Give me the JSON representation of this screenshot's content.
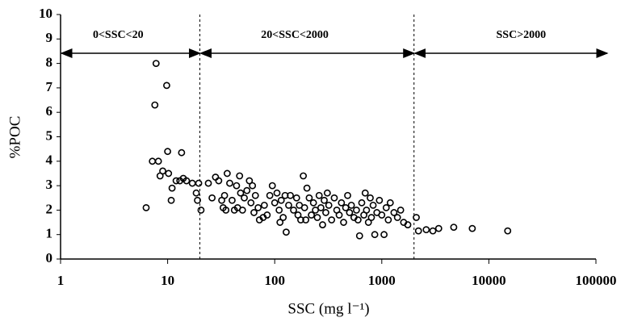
{
  "chart_data": {
    "type": "scatter",
    "x_label": "SSC (mg l⁻¹)",
    "y_label": "%POC",
    "xscale": "log",
    "xlim": [
      1,
      100000
    ],
    "xticks": [
      1,
      10,
      100,
      1000,
      10000,
      100000
    ],
    "ylim": [
      0,
      10
    ],
    "yticks": [
      0,
      1,
      2,
      3,
      4,
      5,
      6,
      7,
      8,
      9,
      10
    ],
    "color": "#000000",
    "regions": [
      {
        "label": "0<SSC<20",
        "from": 1,
        "to": 20
      },
      {
        "label": "20<SSC<2000",
        "from": 20,
        "to": 2000
      },
      {
        "label": "SSC>2000",
        "from": 2000,
        "to": 100000
      }
    ],
    "x": [
      6.3,
      7.2,
      7.6,
      7.8,
      8.2,
      8.5,
      9,
      9.8,
      10,
      10.2,
      10.8,
      11,
      12,
      13.5,
      13,
      14,
      15,
      17,
      18.5,
      19,
      19.5,
      20.5,
      24,
      26,
      28,
      30,
      32,
      33,
      34,
      35,
      36,
      38,
      40,
      42,
      44,
      45,
      47,
      48,
      50,
      52,
      55,
      58,
      60,
      62,
      64,
      66,
      70,
      72,
      78,
      80,
      85,
      90,
      95,
      100,
      105,
      110,
      112,
      115,
      120,
      125,
      128,
      135,
      140,
      150,
      160,
      165,
      170,
      175,
      185,
      190,
      195,
      200,
      210,
      220,
      230,
      240,
      250,
      260,
      270,
      280,
      290,
      300,
      310,
      320,
      340,
      360,
      380,
      400,
      420,
      440,
      460,
      480,
      500,
      520,
      550,
      580,
      600,
      620,
      650,
      680,
      700,
      720,
      750,
      780,
      800,
      830,
      860,
      900,
      950,
      1000,
      1050,
      1100,
      1150,
      1200,
      1300,
      1400,
      1500,
      1600,
      1750,
      2100,
      2200,
      2600,
      3000,
      3400,
      4700,
      7000,
      15000
    ],
    "y": [
      2.1,
      4.0,
      6.3,
      8.0,
      4.0,
      3.4,
      3.6,
      7.1,
      4.4,
      3.5,
      2.4,
      2.9,
      3.2,
      4.35,
      3.2,
      3.3,
      3.2,
      3.1,
      2.7,
      2.4,
      3.1,
      2.0,
      3.1,
      2.5,
      3.35,
      3.2,
      2.4,
      2.1,
      2.6,
      2.0,
      3.5,
      3.1,
      2.4,
      2.0,
      3.0,
      2.1,
      3.4,
      2.7,
      2.0,
      2.5,
      2.8,
      3.2,
      2.3,
      3.0,
      1.9,
      2.6,
      2.1,
      1.6,
      1.7,
      2.2,
      1.8,
      2.6,
      3.0,
      2.3,
      2.7,
      2.0,
      1.5,
      2.4,
      1.7,
      2.6,
      1.1,
      2.2,
      2.6,
      2.0,
      2.5,
      1.8,
      2.2,
      1.6,
      3.4,
      2.1,
      1.6,
      2.9,
      2.5,
      1.8,
      2.3,
      2.0,
      1.7,
      2.6,
      2.1,
      1.4,
      2.4,
      1.9,
      2.7,
      2.2,
      1.6,
      2.5,
      2.0,
      1.8,
      2.3,
      1.5,
      2.1,
      2.6,
      1.9,
      2.2,
      1.7,
      2.0,
      1.6,
      0.95,
      2.3,
      1.8,
      2.7,
      2.0,
      1.5,
      2.5,
      1.7,
      2.2,
      1.0,
      1.9,
      2.4,
      1.8,
      1.0,
      2.1,
      1.6,
      2.3,
      1.9,
      1.7,
      2.0,
      1.5,
      1.4,
      1.7,
      1.15,
      1.2,
      1.15,
      1.25,
      1.3,
      1.25,
      1.15
    ]
  }
}
